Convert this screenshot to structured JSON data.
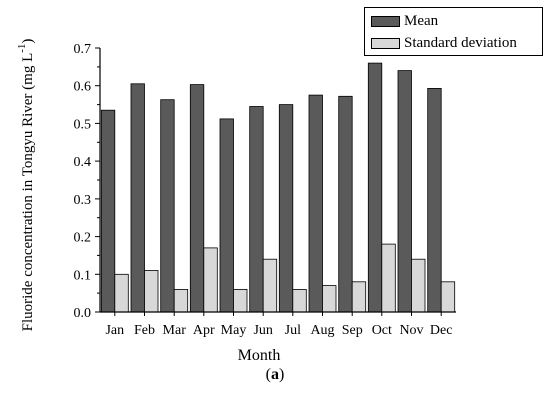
{
  "chart_data": {
    "type": "bar",
    "categories": [
      "Jan",
      "Feb",
      "Mar",
      "Apr",
      "May",
      "Jun",
      "Jul",
      "Aug",
      "Sep",
      "Oct",
      "Nov",
      "Dec"
    ],
    "series": [
      {
        "name": "Mean",
        "color": "#5a5a5a",
        "values": [
          0.535,
          0.605,
          0.563,
          0.603,
          0.512,
          0.545,
          0.55,
          0.575,
          0.572,
          0.66,
          0.64,
          0.593
        ]
      },
      {
        "name": "Standard deviation",
        "color": "#d8d8d8",
        "values": [
          0.1,
          0.11,
          0.06,
          0.17,
          0.06,
          0.14,
          0.06,
          0.07,
          0.08,
          0.18,
          0.14,
          0.08
        ]
      }
    ],
    "ylim": [
      0,
      0.7
    ],
    "yticks": [
      "0.0",
      "0.1",
      "0.2",
      "0.3",
      "0.4",
      "0.5",
      "0.6",
      "0.7"
    ],
    "xlabel": "Month",
    "ylabel": "Fluoride concentration in Tongyu River (mg L",
    "ylabel_superscript": "-1",
    "ylabel_close": ")",
    "legend_position": "top-right",
    "grid": false
  },
  "caption": {
    "open": "(",
    "letter": "a",
    "close": ")"
  }
}
